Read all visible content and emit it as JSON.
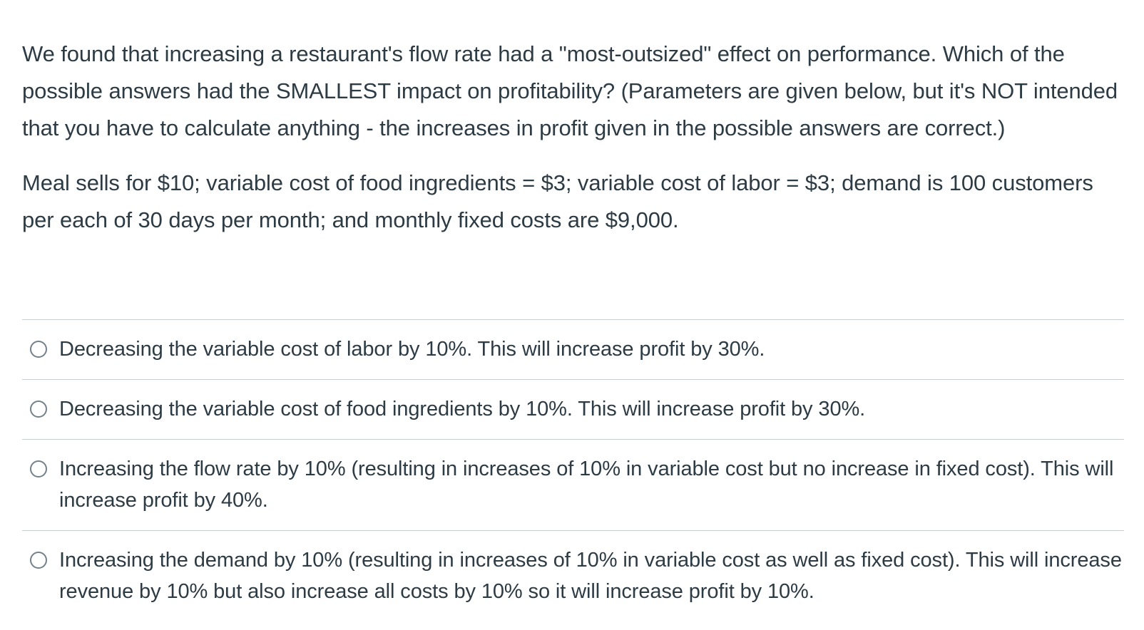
{
  "question": {
    "paragraph1": "We found that increasing a restaurant's flow rate had a \"most-outsized\" effect on performance. Which of the possible answers had the SMALLEST impact on profitability? (Parameters are given below, but it's NOT intended that you have to calculate anything - the increases in profit given in the possible answers are correct.)",
    "paragraph2": "Meal sells for $10; variable cost of food ingredients = $3; variable cost of labor = $3; demand is 100 customers per each of 30 days per month; and monthly fixed costs are $9,000."
  },
  "answers": [
    {
      "label": "Decreasing the variable cost of labor by 10%. This will increase profit by 30%.",
      "selected": false
    },
    {
      "label": "Decreasing the variable cost of food ingredients by 10%. This will increase profit by 30%.",
      "selected": false
    },
    {
      "label": "Increasing the flow rate by 10% (resulting in increases of 10% in variable cost but no increase in fixed cost). This will increase profit by 40%.",
      "selected": false
    },
    {
      "label": "Increasing the demand by 10% (resulting in increases of 10% in variable cost as well as fixed cost). This will increase revenue by 10% but also increase all costs by 10% so it will increase profit by 10%.",
      "selected": false
    }
  ]
}
